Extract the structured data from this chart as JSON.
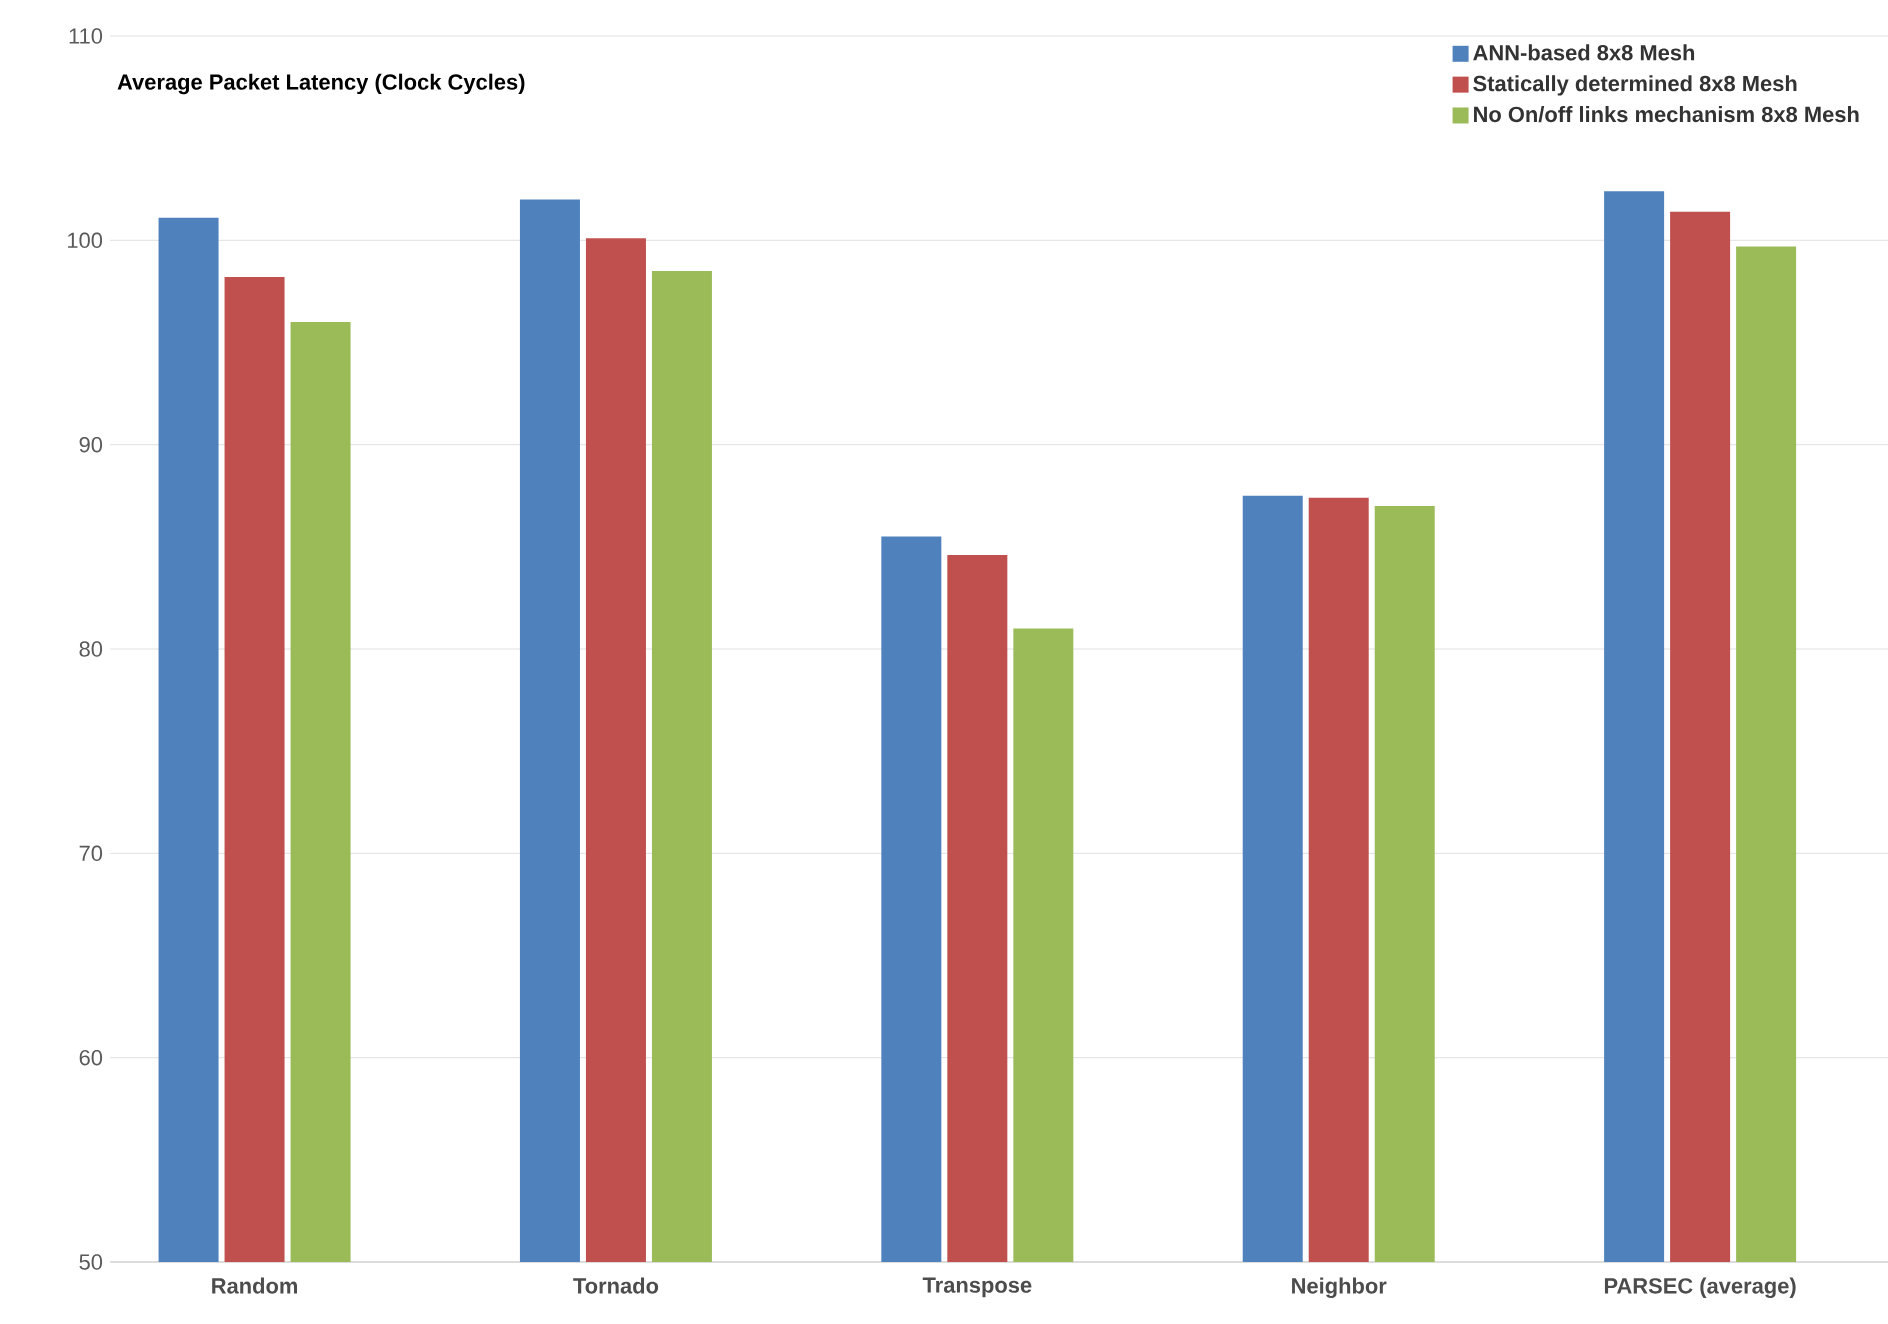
{
  "chart_data": {
    "type": "bar",
    "title": "Average Packet Latency (Clock Cycles)",
    "categories": [
      "Random",
      "Tornado",
      "Transpose",
      "Neighbor",
      "PARSEC (average)"
    ],
    "series": [
      {
        "name": "ANN-based 8x8 Mesh",
        "color": "#4f81bd",
        "values": [
          101.1,
          102.0,
          85.5,
          87.5,
          102.4
        ]
      },
      {
        "name": "Statically determined 8x8 Mesh",
        "color": "#c0504d",
        "values": [
          98.2,
          100.1,
          84.6,
          87.4,
          101.4
        ]
      },
      {
        "name": "No On/off links mechanism 8x8 Mesh",
        "color": "#9bbb59",
        "values": [
          96.0,
          98.5,
          81.0,
          87.0,
          99.7
        ]
      }
    ],
    "ylim": [
      50,
      110
    ],
    "yticks": [
      50,
      60,
      70,
      80,
      90,
      100,
      110
    ],
    "grid": "y",
    "legend": "top right"
  }
}
